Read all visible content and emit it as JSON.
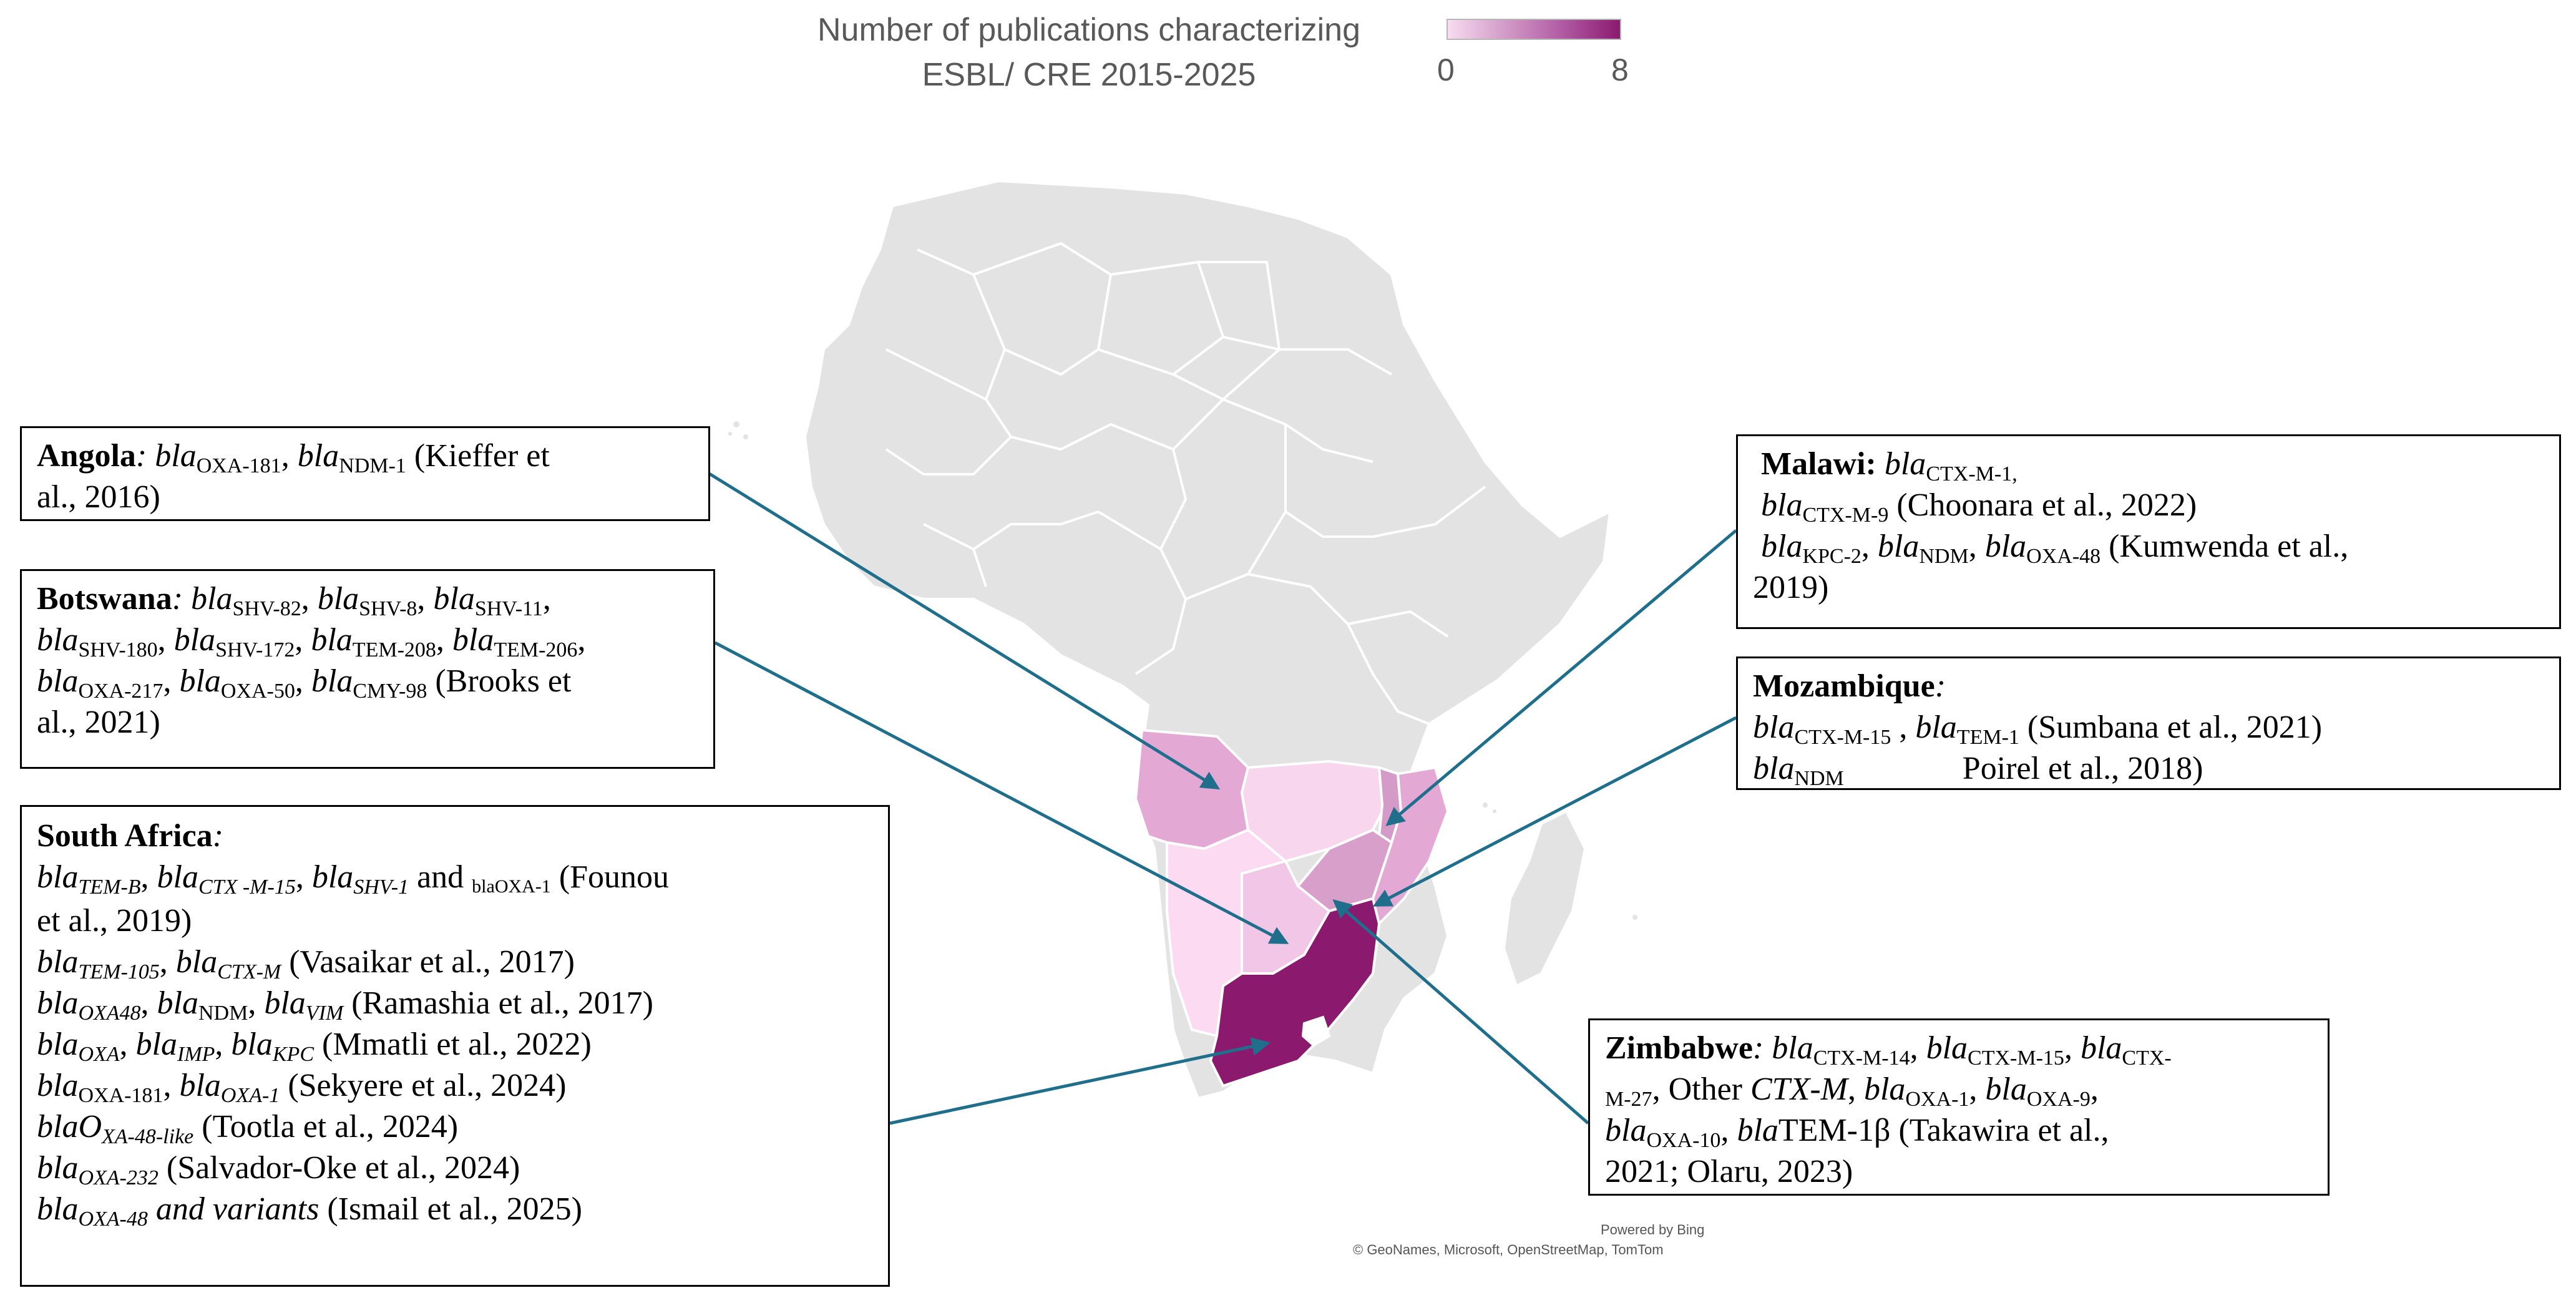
{
  "legend": {
    "title_line1": "Number of publications characterizing",
    "title_line2": "ESBL/ CRE 2015-2025",
    "min_label": "0",
    "max_label": "8",
    "color_min": "#f7dcef",
    "color_max": "#8b1a6f"
  },
  "map": {
    "base_color": "#e3e3e3",
    "border_color": "#ffffff",
    "arrow_color": "#1f6e8c",
    "shading": {
      "south_africa": "#8b1a6f",
      "angola": "#e3a9d4",
      "mozambique": "#e3a9d4",
      "zimbabwe": "#d99fcb",
      "malawi": "#d49ac8",
      "botswana": "#f1c6e6",
      "zambia": "#f7d6ee",
      "namibia": "#fbdaf2"
    },
    "credit_powered": "Powered by Bing",
    "credit_sources": "© GeoNames, Microsoft, OpenStreetMap, TomTom"
  },
  "annotations": {
    "angola": {
      "country": "Angola",
      "line1": {
        "g1": "bla",
        "s1": "OXA-181",
        "g2": "bla",
        "s2": "NDM-1",
        "ref_a": "(Kieffer et"
      },
      "line2": "al., 2016)"
    },
    "botswana": {
      "country": "Botswana",
      "line1": {
        "g1": "bla",
        "s1": "SHV-82",
        "g2": "bla",
        "s2": "SHV-8",
        "g3": "bla",
        "s3": "SHV-11"
      },
      "line2": {
        "g1": "bla",
        "s1": "SHV-180",
        "g2": "bla",
        "s2": "SHV-172",
        "g3": "bla",
        "s3": "TEM-208",
        "g4": "bla",
        "s4": "TEM-206"
      },
      "line3": {
        "g1": "bla",
        "s1": "OXA-217",
        "g2": "bla",
        "s2": "OXA-50",
        "g3": "bla",
        "s3": "CMY-98",
        "ref_a": "(Brooks et"
      },
      "line4": "al., 2021)"
    },
    "south_africa": {
      "country": "South Africa",
      "l1": {
        "g1": "bla",
        "s1": "TEM-B",
        "g2": "bla",
        "s2": "CTX -M-15",
        "g3": "bla",
        "s3": "SHV-1",
        "and": "and",
        "g4": "bla",
        "s4": "OXA-1",
        "ref_a": "(Founou"
      },
      "l2": "et al., 2019)",
      "l3": {
        "g1": "bla",
        "s1": "TEM-105",
        "g2": "bla",
        "s2": "CTX-M",
        "ref": "(Vasaikar et al., 2017)"
      },
      "l4": {
        "g1": "bla",
        "s1": "OXA48",
        "g2": "bla",
        "s2": "NDM",
        "g3": "bla",
        "s3": "VIM",
        "ref": "(Ramashia et al., 2017)"
      },
      "l5": {
        "g1": "bla",
        "s1": "OXA",
        "g2": "bla",
        "s2": "IMP",
        "g3": "bla",
        "s3": "KPC",
        "ref": "(Mmatli et al., 2022)"
      },
      "l6": {
        "g1": "bla",
        "s1": "OXA-181",
        "g2": "bla",
        "s2": "OXA-1",
        "ref": "(Sekyere et al., 2024)"
      },
      "l7": {
        "g1": "blaO",
        "s1": "XA-48-like",
        "ref": "(Tootla et al., 2024)"
      },
      "l8": {
        "g1": "bla",
        "s1": "OXA-232",
        "ref": "(Salvador-Oke et al., 2024)"
      },
      "l9": {
        "g1": "bla",
        "s1": "OXA-48",
        "variants": "and variants",
        "ref": "(Ismail et al., 2025)"
      }
    },
    "malawi": {
      "country": "Malawi",
      "l1": {
        "g1": "bla",
        "s1": "CTX-M-1,"
      },
      "l2": {
        "g1": "bla",
        "s1": "CTX-M-9",
        "ref": "(Choonara et al., 2022)"
      },
      "l3": {
        "g1": "bla",
        "s1": "KPC-2",
        "g2": "bla",
        "s2": "NDM",
        "g3": "bla",
        "s3": "OXA-48",
        "ref_a": "(Kumwenda et al.,"
      },
      "l4": "2019)"
    },
    "mozambique": {
      "country": "Mozambique",
      "l1": {
        "g1": "bla",
        "s1": "CTX-M-15",
        "g2": "bla",
        "s2": "TEM-1",
        "ref": "(Sumbana et al., 2021)"
      },
      "l2": {
        "g1": "bla",
        "s1": "NDM",
        "ref": "Poirel et al., 2018)"
      }
    },
    "zimbabwe": {
      "country": "Zimbabwe",
      "l1": {
        "g1": "bla",
        "s1": "CTX-M-14",
        "g2": "bla",
        "s2": "CTX-M-15",
        "g3": "bla",
        "s3": "CTX-"
      },
      "l2": {
        "s0": "M-27",
        "other": "Other",
        "ctxm": "CTX-M",
        "g1": "bla",
        "s1": "OXA-1",
        "g2": "bla",
        "s2": "OXA-9"
      },
      "l3": {
        "g1": "bla",
        "s1": "OXA-10",
        "g2": "bla",
        "tem": "TEM-1β",
        "ref_a": "(Takawira et al.,"
      },
      "l4": "2021; Olaru, 2023)"
    }
  }
}
